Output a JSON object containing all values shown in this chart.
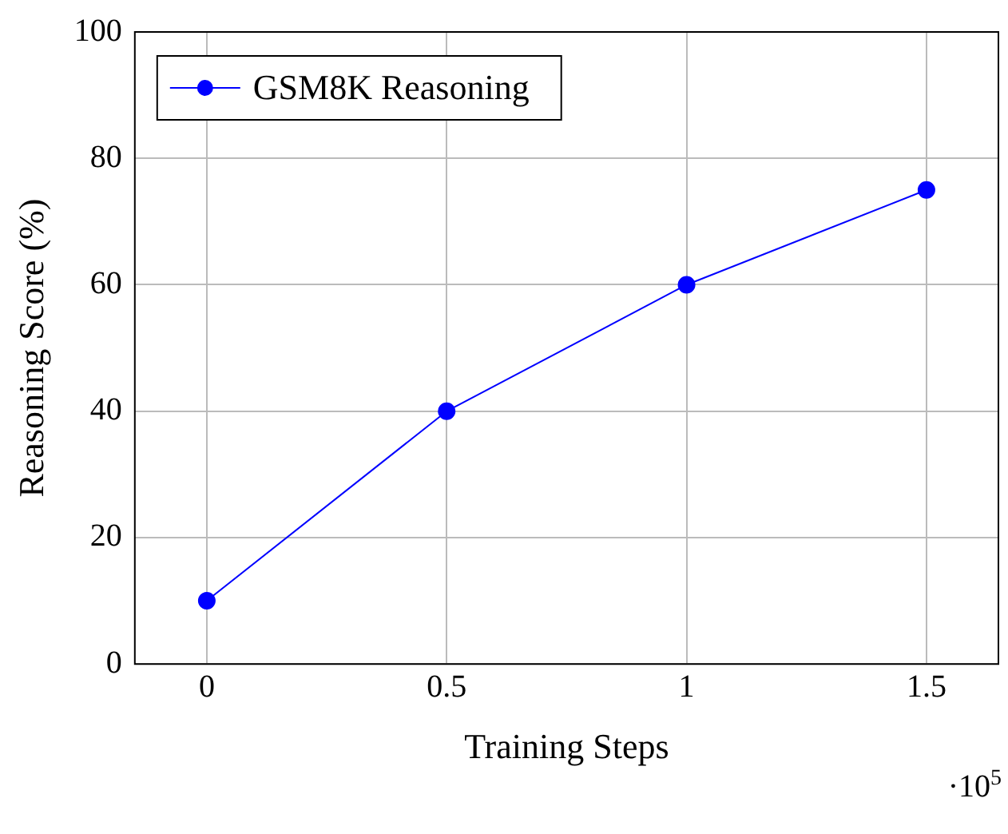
{
  "chart_data": {
    "type": "line",
    "xlabel": "Training Steps",
    "ylabel": "Reasoning Score (%)",
    "x": [
      0,
      0.5,
      1,
      1.5
    ],
    "series": [
      {
        "name": "GSM8K Reasoning",
        "color": "#0000ff",
        "values": [
          10,
          40,
          60,
          75
        ]
      }
    ],
    "xlim": [
      -0.15,
      1.65
    ],
    "xticks": [
      0,
      0.5,
      1,
      1.5
    ],
    "ylim": [
      0,
      100
    ],
    "yticks": [
      0,
      20,
      40,
      60,
      80,
      100
    ],
    "grid": true,
    "legend": "top left",
    "marker": "circle",
    "line_style": "solid",
    "annotations": [
      "·10$^{5}$"
    ]
  }
}
